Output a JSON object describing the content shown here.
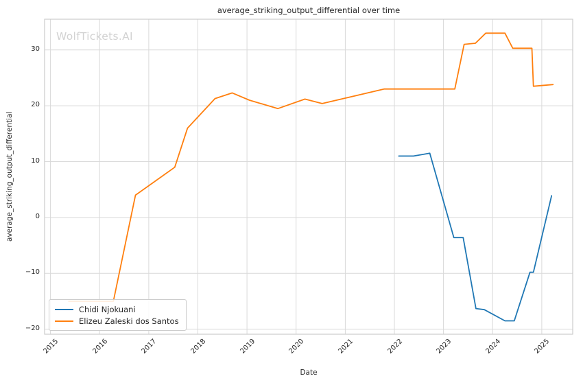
{
  "watermark": "WolfTickets.AI",
  "chart_data": {
    "type": "line",
    "title": "average_striking_output_differential over time",
    "xlabel": "Date",
    "ylabel": "average_striking_output_differential",
    "xlim": [
      2014.88,
      2025.63
    ],
    "ylim": [
      -20.9,
      35.5
    ],
    "xticks": [
      2015,
      2016,
      2017,
      2018,
      2019,
      2020,
      2021,
      2022,
      2023,
      2024,
      2025
    ],
    "yticks": [
      -20,
      -10,
      0,
      10,
      20,
      30
    ],
    "grid": true,
    "legend_position": "lower left",
    "colors": {
      "grid": "#d9d9d9",
      "spine": "#cccccc",
      "text": "#262626",
      "watermark": "#d2d2d2"
    },
    "series": [
      {
        "name": "Chidi Njokuani",
        "color": "#1f77b4",
        "points": [
          [
            2022.09,
            11.0
          ],
          [
            2022.39,
            11.0
          ],
          [
            2022.72,
            11.5
          ],
          [
            2023.21,
            -3.6
          ],
          [
            2023.4,
            -3.6
          ],
          [
            2023.66,
            -16.3
          ],
          [
            2023.83,
            -16.5
          ],
          [
            2024.25,
            -18.5
          ],
          [
            2024.44,
            -18.5
          ],
          [
            2024.76,
            -9.8
          ],
          [
            2024.83,
            -9.8
          ],
          [
            2025.2,
            3.9
          ]
        ]
      },
      {
        "name": "Elizeu Zaleski dos Santos",
        "color": "#ff7f0e",
        "points": [
          [
            2015.37,
            -15.0
          ],
          [
            2016.28,
            -15.0
          ],
          [
            2016.73,
            4.0
          ],
          [
            2017.53,
            9.0
          ],
          [
            2017.79,
            16.0
          ],
          [
            2018.35,
            21.3
          ],
          [
            2018.7,
            22.3
          ],
          [
            2019.05,
            21.0
          ],
          [
            2019.63,
            19.5
          ],
          [
            2020.18,
            21.2
          ],
          [
            2020.53,
            20.4
          ],
          [
            2021.79,
            23.0
          ],
          [
            2023.23,
            23.0
          ],
          [
            2023.42,
            31.0
          ],
          [
            2023.65,
            31.2
          ],
          [
            2023.86,
            33.0
          ],
          [
            2024.25,
            33.0
          ],
          [
            2024.41,
            30.3
          ],
          [
            2024.8,
            30.3
          ],
          [
            2024.83,
            23.5
          ],
          [
            2025.23,
            23.8
          ]
        ]
      }
    ]
  }
}
